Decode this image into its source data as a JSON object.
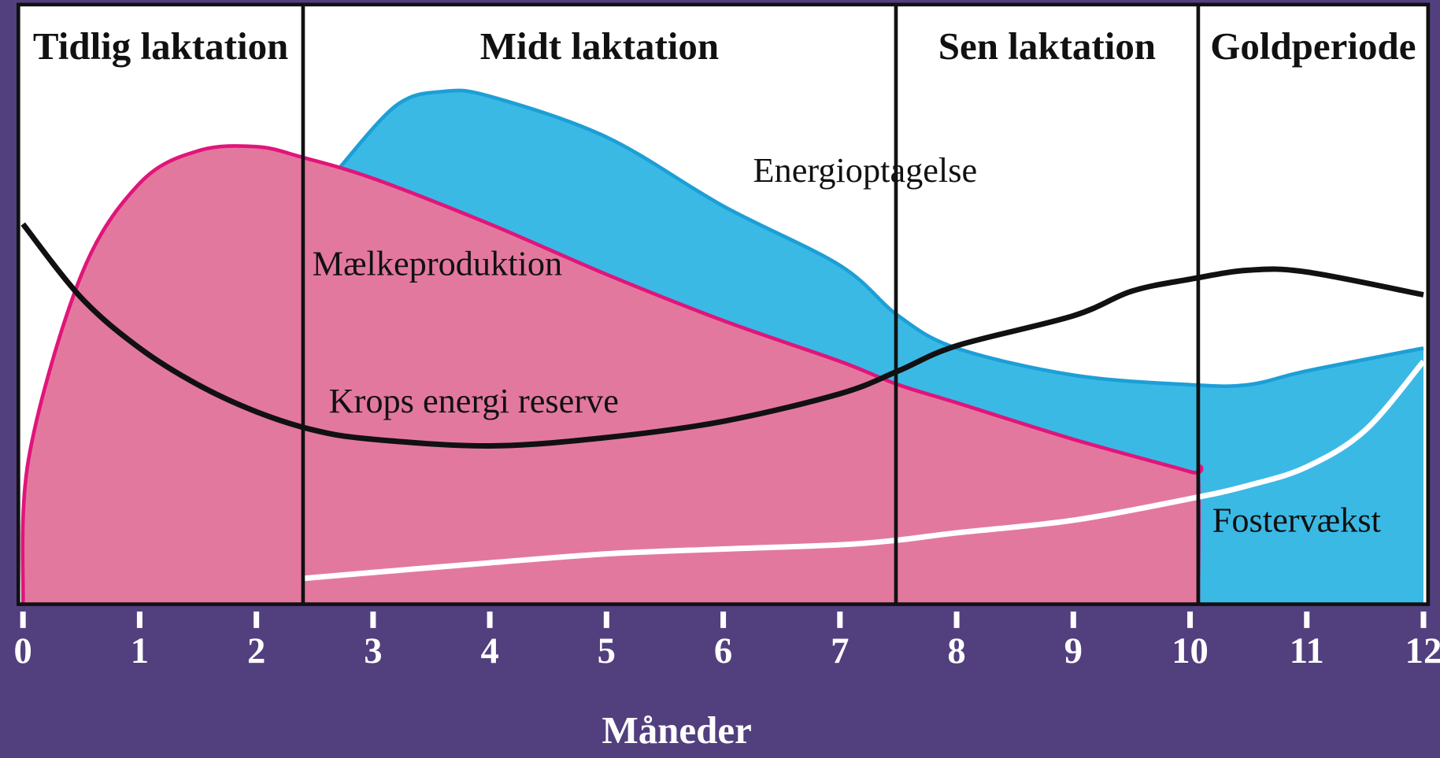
{
  "chart_data": {
    "type": "line",
    "x_label": "Måneder",
    "xlim": [
      0,
      12
    ],
    "xticks": [
      0,
      1,
      2,
      3,
      4,
      5,
      6,
      7,
      8,
      9,
      10,
      11,
      12
    ],
    "ylim": [
      0,
      100
    ],
    "phases": [
      {
        "label": "Tidlig laktation",
        "start": 0,
        "end": 2.4
      },
      {
        "label": "Midt laktation",
        "start": 2.4,
        "end": 7.48
      },
      {
        "label": "Sen laktation",
        "start": 7.48,
        "end": 10.07
      },
      {
        "label": "Goldperiode",
        "start": 10.07,
        "end": 12
      }
    ],
    "series": [
      {
        "name": "Energioptagelse",
        "style": "area",
        "color": "#3bb9e5",
        "line_color": "#1c9fd6",
        "x": [
          2.7,
          3.2,
          3.6,
          4,
          5,
          6,
          7,
          7.5,
          8,
          9,
          10,
          10.5,
          11,
          12
        ],
        "values": [
          72.5,
          83.2,
          85.5,
          84.7,
          77.9,
          66.4,
          56.5,
          48.1,
          42.7,
          38.2,
          36.6,
          36.6,
          38.9,
          42.7
        ]
      },
      {
        "name": "Mælkeproduktion",
        "style": "area",
        "color": "#e3789f",
        "line_color": "#e0157a",
        "x": [
          0,
          0.05,
          0.5,
          1,
          1.5,
          2,
          2.4,
          3,
          4,
          5,
          6,
          7,
          7.5,
          8,
          9,
          10,
          10.07,
          10.07
        ],
        "values": [
          0,
          24.4,
          54.9,
          70.2,
          75.6,
          76.3,
          74.5,
          71.0,
          63.4,
          55.0,
          47.3,
          40.5,
          36.6,
          33.6,
          27.5,
          22.1,
          21.4,
          0
        ]
      },
      {
        "name": "Krops energi reserve",
        "style": "line",
        "color": "#111111",
        "x": [
          0,
          0.5,
          1,
          1.5,
          2,
          2.5,
          3,
          4,
          5,
          6,
          7,
          7.5,
          8,
          9,
          9.5,
          10,
          10.5,
          11,
          12
        ],
        "values": [
          63.4,
          51.1,
          42.7,
          36.6,
          32.1,
          29.0,
          27.5,
          26.4,
          27.8,
          30.5,
          35.1,
          38.9,
          43.1,
          48.1,
          52.2,
          54.2,
          55.7,
          55.4,
          51.6
        ]
      },
      {
        "name": "Fostervækst",
        "style": "line",
        "color": "#ffffff",
        "x": [
          2.4,
          3,
          4,
          5,
          6,
          7,
          7.5,
          8,
          9,
          10,
          10.5,
          11,
          11.5,
          12
        ],
        "values": [
          4.3,
          5.3,
          6.9,
          8.4,
          9.2,
          9.9,
          10.7,
          11.9,
          14.0,
          17.6,
          19.8,
          22.9,
          29.0,
          40.5
        ]
      }
    ]
  }
}
